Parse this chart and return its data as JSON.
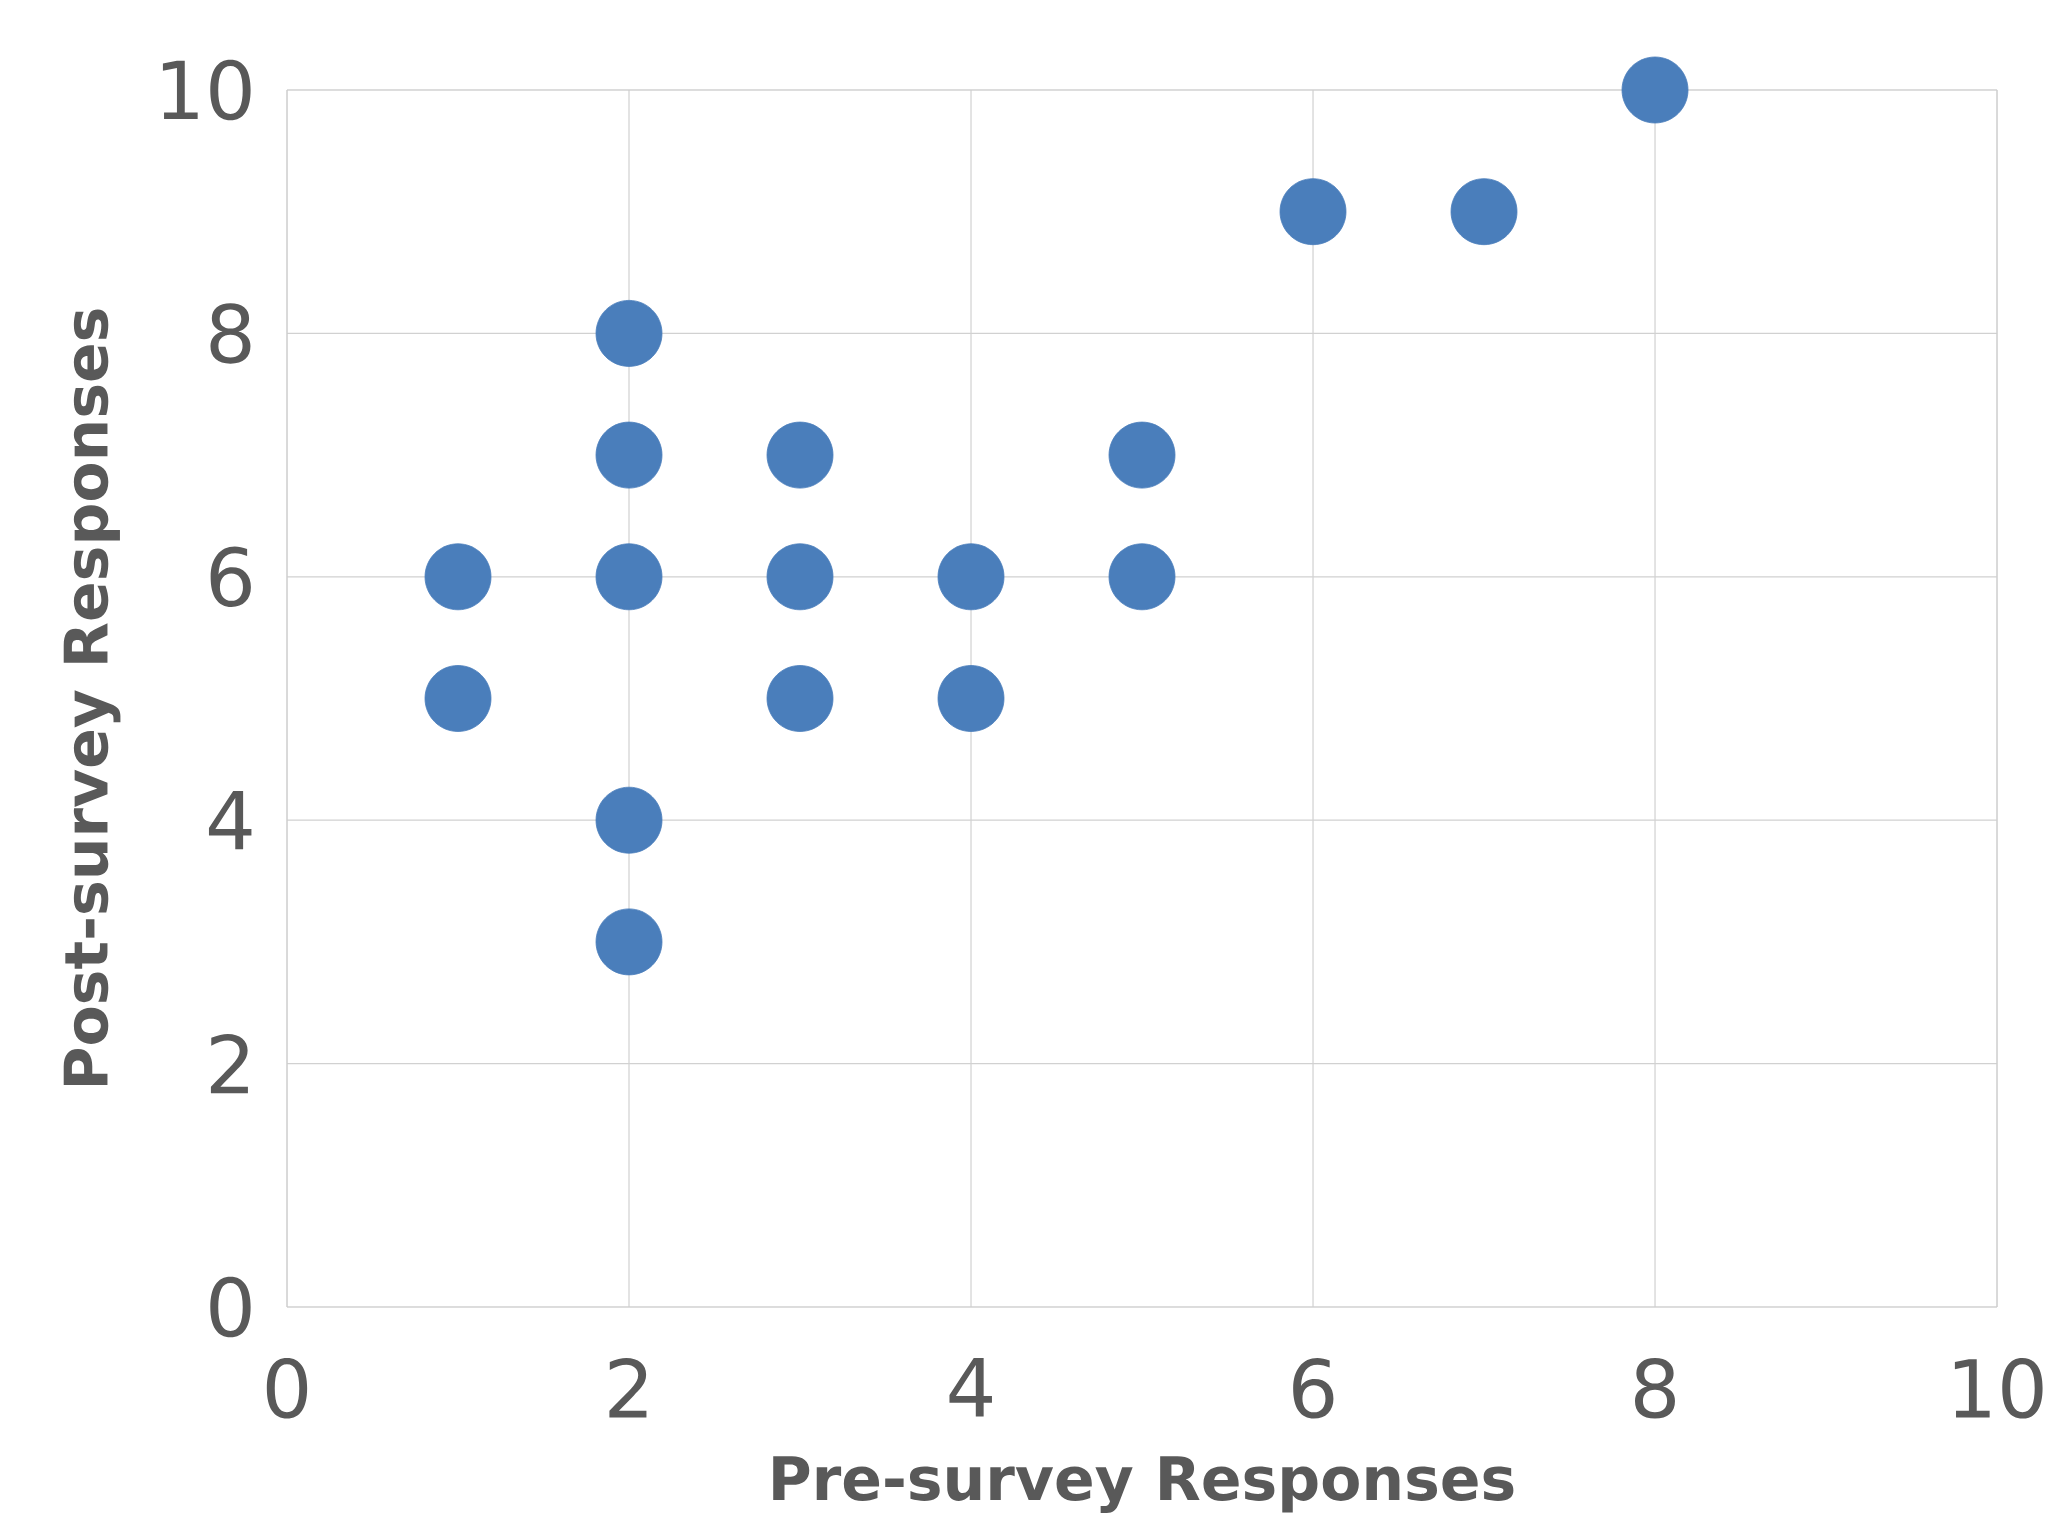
{
  "chart_data": {
    "type": "scatter",
    "xlabel": "Pre-survey Responses",
    "ylabel": "Post-survey Responses",
    "xlim": [
      0,
      10
    ],
    "ylim": [
      0,
      10
    ],
    "xticks": [
      0,
      2,
      4,
      6,
      8,
      10
    ],
    "yticks": [
      0,
      2,
      4,
      6,
      8,
      10
    ],
    "grid": true,
    "marker": "circle",
    "series": [
      {
        "color": "#4a7ebb",
        "x": [
          1,
          1,
          2,
          2,
          2,
          2,
          2,
          3,
          3,
          3,
          4,
          4,
          5,
          5,
          6,
          7,
          8
        ],
        "values": [
          6,
          5,
          8,
          7,
          6,
          4,
          3,
          7,
          6,
          5,
          6,
          5,
          7,
          6,
          9,
          9,
          10
        ]
      }
    ]
  }
}
